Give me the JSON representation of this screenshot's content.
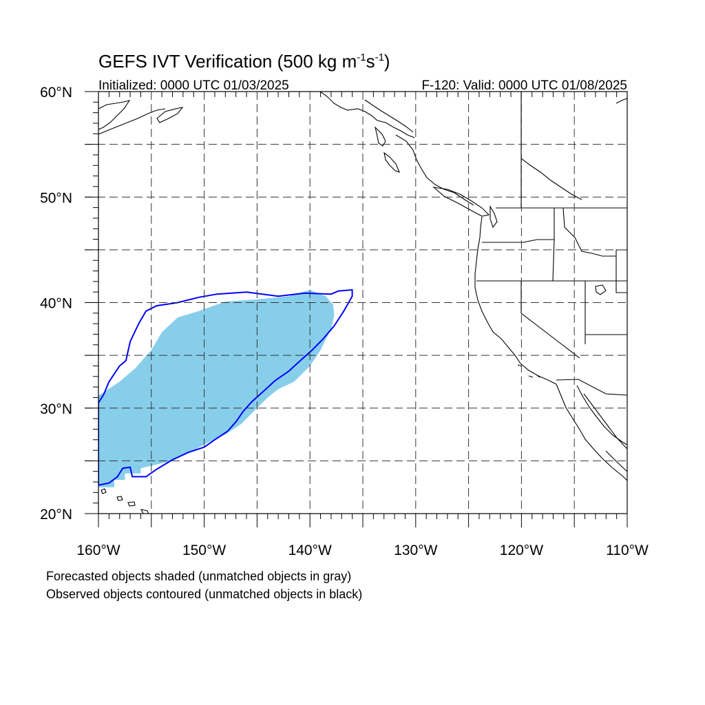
{
  "title": {
    "main": "GEFS IVT Verification (500 kg m",
    "exp1": "-1",
    "mid": "s",
    "exp2": "-1",
    "close": ")"
  },
  "subtitle_left": "Initialized: 0000 UTC 01/03/2025",
  "subtitle_right": "F-120: Valid: 0000 UTC 01/08/2025",
  "map": {
    "lon_range": [
      -160,
      -110
    ],
    "lat_range": [
      20,
      60
    ],
    "grid": "dashed",
    "lon_ticks": [
      {
        "value": -160,
        "label": "160°W"
      },
      {
        "value": -150,
        "label": "150°W"
      },
      {
        "value": -140,
        "label": "140°W"
      },
      {
        "value": -130,
        "label": "130°W"
      },
      {
        "value": -120,
        "label": "120°W"
      },
      {
        "value": -110,
        "label": "110°W"
      }
    ],
    "lat_ticks": [
      {
        "value": 60,
        "label": "60°N"
      },
      {
        "value": 50,
        "label": "50°N"
      },
      {
        "value": 40,
        "label": "40°N"
      },
      {
        "value": 30,
        "label": "30°N"
      },
      {
        "value": 20,
        "label": "20°N"
      }
    ],
    "forecast_object": {
      "color": "#87ceeb",
      "polygon_lonlat": [
        [
          -160,
          22.5
        ],
        [
          -158.5,
          22.5
        ],
        [
          -158.5,
          23.2
        ],
        [
          -157.5,
          23.2
        ],
        [
          -157.5,
          23.8
        ],
        [
          -156,
          23.8
        ],
        [
          -156,
          24.3
        ],
        [
          -153,
          25
        ],
        [
          -151,
          26
        ],
        [
          -149.5,
          26.8
        ],
        [
          -148,
          27.5
        ],
        [
          -146.5,
          28.5
        ],
        [
          -145.5,
          29.5
        ],
        [
          -144,
          31
        ],
        [
          -143,
          31.8
        ],
        [
          -141.5,
          32.5
        ],
        [
          -140,
          34
        ],
        [
          -139,
          35.5
        ],
        [
          -138,
          37.5
        ],
        [
          -137.7,
          38.8
        ],
        [
          -137.8,
          39.8
        ],
        [
          -138.5,
          40.6
        ],
        [
          -140,
          41.2
        ],
        [
          -141,
          40.9
        ],
        [
          -142,
          40.6
        ],
        [
          -145,
          40.3
        ],
        [
          -148,
          40.1
        ],
        [
          -150.5,
          39.2
        ],
        [
          -152.5,
          38.6
        ],
        [
          -154,
          37.2
        ],
        [
          -155,
          35.5
        ],
        [
          -156.5,
          33.8
        ],
        [
          -158,
          32.5
        ],
        [
          -159.5,
          31.5
        ],
        [
          -160,
          31.2
        ]
      ]
    },
    "observed_object": {
      "color": "#0000ff",
      "polygon_lonlat": [
        [
          -160,
          22.7
        ],
        [
          -159,
          22.9
        ],
        [
          -158.2,
          23.5
        ],
        [
          -157.7,
          24.3
        ],
        [
          -157,
          24.4
        ],
        [
          -156.8,
          23.5
        ],
        [
          -155.5,
          23.5
        ],
        [
          -154.5,
          24.2
        ],
        [
          -153,
          25.1
        ],
        [
          -151.5,
          25.8
        ],
        [
          -150,
          26.3
        ],
        [
          -149,
          27
        ],
        [
          -147.8,
          27.8
        ],
        [
          -147,
          28.7
        ],
        [
          -146.3,
          29.7
        ],
        [
          -145.5,
          30.6
        ],
        [
          -144.5,
          31.5
        ],
        [
          -143.3,
          32.6
        ],
        [
          -142,
          33.5
        ],
        [
          -140.8,
          34.6
        ],
        [
          -139.8,
          35.5
        ],
        [
          -138.8,
          36.5
        ],
        [
          -137.7,
          37.8
        ],
        [
          -136.8,
          39.2
        ],
        [
          -136,
          40.6
        ],
        [
          -136,
          41.2
        ],
        [
          -137.3,
          41.1
        ],
        [
          -138,
          40.8
        ],
        [
          -140.5,
          40.9
        ],
        [
          -143,
          40.6
        ],
        [
          -146,
          41
        ],
        [
          -148.8,
          40.8
        ],
        [
          -150.5,
          40.5
        ],
        [
          -152.5,
          40
        ],
        [
          -154.5,
          39.7
        ],
        [
          -155.5,
          39.2
        ],
        [
          -156.2,
          38
        ],
        [
          -157,
          36.3
        ],
        [
          -157.4,
          34.5
        ],
        [
          -158,
          34
        ],
        [
          -159,
          32.5
        ],
        [
          -159.5,
          31.3
        ],
        [
          -160,
          30.5
        ]
      ]
    }
  },
  "legend_lines": [
    "Forecasted objects shaded (unmatched objects in gray)",
    "Observed objects contoured (unmatched objects in black)"
  ]
}
